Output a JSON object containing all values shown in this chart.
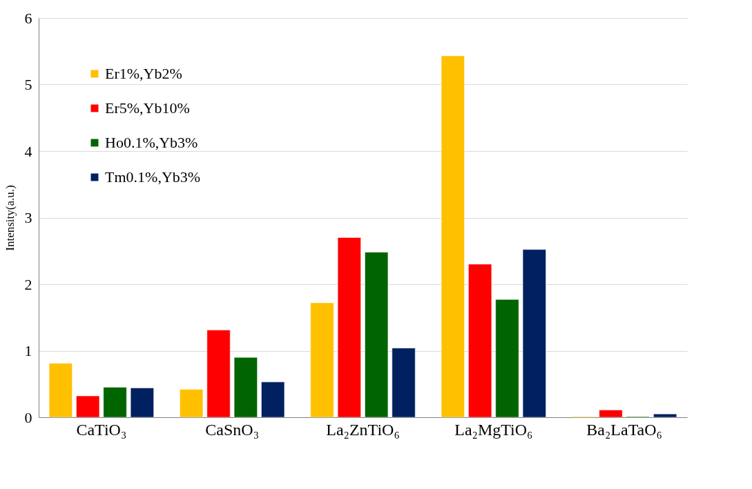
{
  "chart_data": {
    "type": "bar",
    "ylabel": "Intensity(a.u.)",
    "categories": [
      "CaTiO₃",
      "CaSnO₃",
      "La₂ZnTiO₆",
      "La₂MgTiO₆",
      "Ba₂LaTaO₆"
    ],
    "series": [
      {
        "name": "Er1%,Yb2%",
        "color": "#ffc000",
        "values": [
          0.81,
          0.42,
          1.72,
          5.43,
          0.01
        ]
      },
      {
        "name": "Er5%,Yb10%",
        "color": "#ff0000",
        "values": [
          0.32,
          1.31,
          2.7,
          2.3,
          0.11
        ]
      },
      {
        "name": "Ho0.1%,Yb3%",
        "color": "#006400",
        "values": [
          0.45,
          0.9,
          2.48,
          1.77,
          0.01
        ]
      },
      {
        "name": "Tm0.1%,Yb3%",
        "color": "#002060",
        "values": [
          0.44,
          0.53,
          1.04,
          2.52,
          0.05
        ]
      }
    ],
    "ylim": [
      0,
      6
    ],
    "yticks": [
      0,
      1,
      2,
      3,
      4,
      5,
      6
    ],
    "grid": "y",
    "legend": "top left"
  }
}
